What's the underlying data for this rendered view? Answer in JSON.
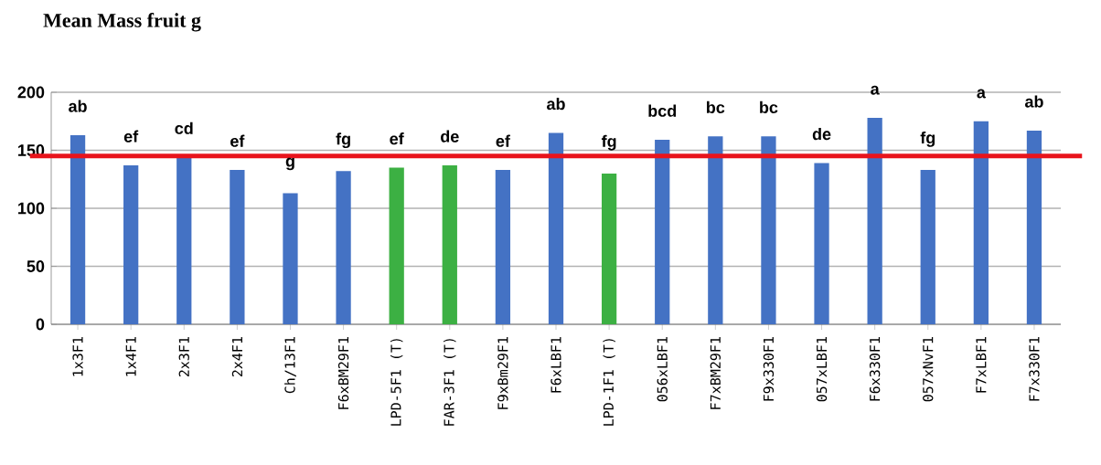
{
  "chart_data": {
    "type": "bar",
    "title": "Mean Mass fruit g",
    "categories": [
      "1x3F1",
      "1x4F1",
      "2x3F1",
      "2x4F1",
      "Ch/13F1",
      "F6xBM29F1",
      "LPD-5F1 (T)",
      "FAR-3F1 (T)",
      "F9xBm29F1",
      "F6xLBF1",
      "LPD-1F1 (T)",
      "056xLBF1",
      "F7xBM29F1",
      "F9x330F1",
      "057xLBF1",
      "F6x330F1",
      "057xNvF1",
      "F7xLBF1",
      "F7x330F1"
    ],
    "values": [
      163,
      137,
      144,
      133,
      113,
      132,
      135,
      137,
      133,
      165,
      130,
      159,
      162,
      162,
      139,
      178,
      133,
      175,
      167
    ],
    "colors": [
      "#4472c4",
      "#4472c4",
      "#4472c4",
      "#4472c4",
      "#4472c4",
      "#4472c4",
      "#3cb043",
      "#3cb043",
      "#4472c4",
      "#4472c4",
      "#3cb043",
      "#4472c4",
      "#4472c4",
      "#4472c4",
      "#4472c4",
      "#4472c4",
      "#4472c4",
      "#4472c4",
      "#4472c4"
    ],
    "value_labels": [
      "ab",
      "ef",
      "cd",
      "ef",
      "g",
      "fg",
      "ef",
      "de",
      "ef",
      "ab",
      "fg",
      "bcd",
      "bc",
      "bc",
      "de",
      "a",
      "fg",
      "a",
      "ab"
    ],
    "ylim": [
      0,
      200
    ],
    "yticks": [
      0,
      50,
      100,
      150,
      200
    ],
    "grid": "y",
    "ref_lines": [
      {
        "axis": "y",
        "value": 145,
        "color": "#e8141c"
      }
    ]
  }
}
